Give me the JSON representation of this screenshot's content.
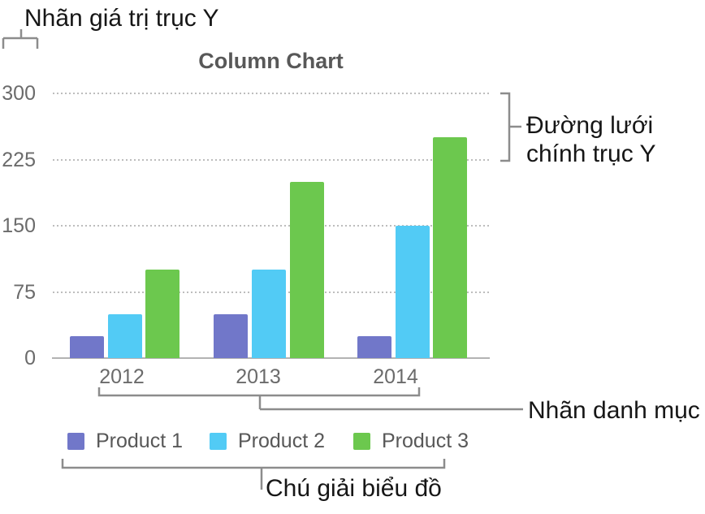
{
  "annotations": {
    "y_value_labels": "Nhãn giá trị trục Y",
    "y_gridlines": "Đường lưới chính trục Y",
    "category_labels": "Nhãn danh mục",
    "chart_legend": "Chú giải biểu đồ"
  },
  "chart_data": {
    "type": "bar",
    "title": "Column Chart",
    "categories": [
      "2012",
      "2013",
      "2014"
    ],
    "series": [
      {
        "name": "Product 1",
        "color": "#7177c9",
        "values": [
          25,
          50,
          25
        ]
      },
      {
        "name": "Product 2",
        "color": "#52cbf5",
        "values": [
          50,
          100,
          150
        ]
      },
      {
        "name": "Product 3",
        "color": "#6cc84e",
        "values": [
          100,
          200,
          250
        ]
      }
    ],
    "ylim": [
      0,
      300
    ],
    "yticks": [
      0,
      75,
      150,
      225,
      300
    ],
    "grid": "horizontal dotted major gridlines",
    "legend_position": "bottom"
  }
}
